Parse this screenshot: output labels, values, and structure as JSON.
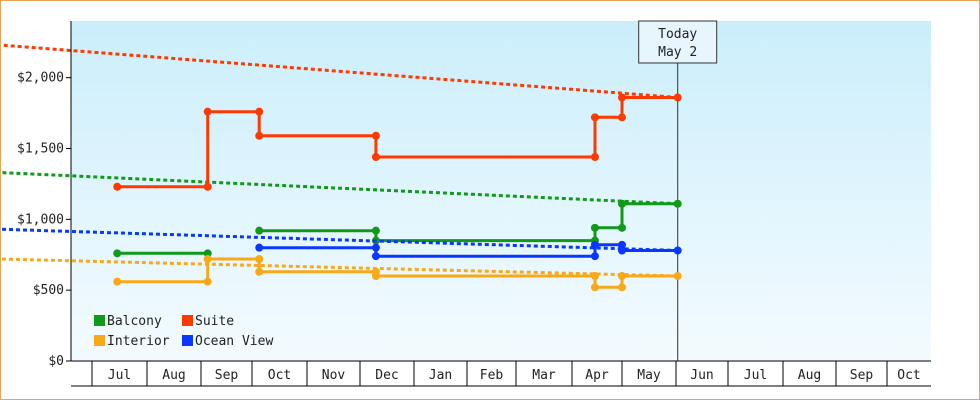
{
  "chart_data": {
    "type": "line",
    "title": "",
    "xlabel": "",
    "ylabel": "",
    "ylim": [
      0,
      2400
    ],
    "y_ticks": [
      {
        "value": 0,
        "label": "$0"
      },
      {
        "value": 500,
        "label": "$500"
      },
      {
        "value": 1000,
        "label": "$1,000"
      },
      {
        "value": 1500,
        "label": "$1,500"
      },
      {
        "value": 2000,
        "label": "$2,000"
      }
    ],
    "x_months": [
      "Jul",
      "Aug",
      "Sep",
      "Oct",
      "Nov",
      "Dec",
      "Jan",
      "Feb",
      "Mar",
      "Apr",
      "May",
      "Jun",
      "Jul",
      "Aug",
      "Sep",
      "Oct"
    ],
    "today": {
      "line1": "Today",
      "line2": "May 2"
    },
    "legend_position": "bottom-left",
    "grid": false,
    "series": [
      {
        "name": "Balcony",
        "color": "#11991a",
        "segments": [
          [
            [
              "Jun 15",
              760
            ],
            [
              "Aug 5",
              760
            ]
          ],
          [
            [
              "Sep 5",
              920
            ],
            [
              "Nov 10",
              920
            ],
            [
              "Nov 10",
              850
            ],
            [
              "Mar 15",
              850
            ],
            [
              "Mar 15",
              940
            ],
            [
              "Apr 1",
              940
            ],
            [
              "Apr 1",
              1110
            ],
            [
              "May 2",
              1110
            ]
          ]
        ],
        "markers": [
          [
            "Jun 15",
            760
          ],
          [
            "Aug 5",
            760
          ],
          [
            "Sep 5",
            920
          ],
          [
            "Nov 10",
            920
          ],
          [
            "Nov 10",
            850
          ],
          [
            "Mar 15",
            850
          ],
          [
            "Mar 15",
            940
          ],
          [
            "Apr 1",
            940
          ],
          [
            "Apr 1",
            1110
          ],
          [
            "May 2",
            1110
          ]
        ],
        "projection": [
          [
            "May 2",
            1110
          ],
          [
            "Oct 25",
            1330
          ]
        ]
      },
      {
        "name": "Suite",
        "color": "#ff3a00",
        "segments": [
          [
            [
              "Jun 15",
              1230
            ],
            [
              "Aug 5",
              1230
            ],
            [
              "Aug 5",
              1760
            ],
            [
              "Sep 5",
              1760
            ],
            [
              "Sep 5",
              1590
            ],
            [
              "Nov 10",
              1590
            ],
            [
              "Nov 10",
              1440
            ],
            [
              "Mar 15",
              1440
            ],
            [
              "Mar 15",
              1720
            ],
            [
              "Apr 1",
              1720
            ],
            [
              "Apr 1",
              1860
            ],
            [
              "May 2",
              1860
            ]
          ]
        ],
        "markers": [
          [
            "Jun 15",
            1230
          ],
          [
            "Aug 5",
            1230
          ],
          [
            "Aug 5",
            1760
          ],
          [
            "Sep 5",
            1760
          ],
          [
            "Sep 5",
            1590
          ],
          [
            "Nov 10",
            1590
          ],
          [
            "Nov 10",
            1440
          ],
          [
            "Mar 15",
            1440
          ],
          [
            "Mar 15",
            1720
          ],
          [
            "Apr 1",
            1720
          ],
          [
            "Apr 1",
            1860
          ],
          [
            "May 2",
            1860
          ]
        ],
        "projection": [
          [
            "May 2",
            1860
          ],
          [
            "Oct 25",
            2230
          ]
        ]
      },
      {
        "name": "Interior",
        "color": "#f9a818",
        "segments": [
          [
            [
              "Jun 15",
              560
            ],
            [
              "Aug 5",
              560
            ],
            [
              "Aug 5",
              720
            ],
            [
              "Sep 5",
              720
            ],
            [
              "Sep 5",
              630
            ],
            [
              "Nov 10",
              630
            ],
            [
              "Nov 10",
              600
            ],
            [
              "Mar 15",
              600
            ],
            [
              "Mar 15",
              520
            ],
            [
              "Apr 1",
              520
            ],
            [
              "Apr 1",
              600
            ],
            [
              "May 2",
              600
            ]
          ]
        ],
        "markers": [
          [
            "Jun 15",
            560
          ],
          [
            "Aug 5",
            560
          ],
          [
            "Aug 5",
            720
          ],
          [
            "Sep 5",
            720
          ],
          [
            "Sep 5",
            630
          ],
          [
            "Nov 10",
            630
          ],
          [
            "Nov 10",
            600
          ],
          [
            "Mar 15",
            600
          ],
          [
            "Mar 15",
            520
          ],
          [
            "Apr 1",
            520
          ],
          [
            "Apr 1",
            600
          ],
          [
            "May 2",
            600
          ]
        ],
        "projection": [
          [
            "May 2",
            600
          ],
          [
            "Oct 25",
            720
          ]
        ]
      },
      {
        "name": "Ocean View",
        "color": "#0838ff",
        "segments": [
          [
            [
              "Sep 5",
              800
            ],
            [
              "Nov 10",
              800
            ],
            [
              "Nov 10",
              740
            ],
            [
              "Mar 15",
              740
            ],
            [
              "Mar 15",
              820
            ],
            [
              "Apr 1",
              820
            ],
            [
              "Apr 1",
              780
            ],
            [
              "May 2",
              780
            ]
          ]
        ],
        "markers": [
          [
            "Sep 5",
            800
          ],
          [
            "Nov 10",
            800
          ],
          [
            "Nov 10",
            740
          ],
          [
            "Mar 15",
            740
          ],
          [
            "Mar 15",
            820
          ],
          [
            "Apr 1",
            820
          ],
          [
            "Apr 1",
            780
          ],
          [
            "May 2",
            780
          ]
        ],
        "projection": [
          [
            "May 2",
            780
          ],
          [
            "Oct 25",
            930
          ]
        ]
      }
    ]
  }
}
